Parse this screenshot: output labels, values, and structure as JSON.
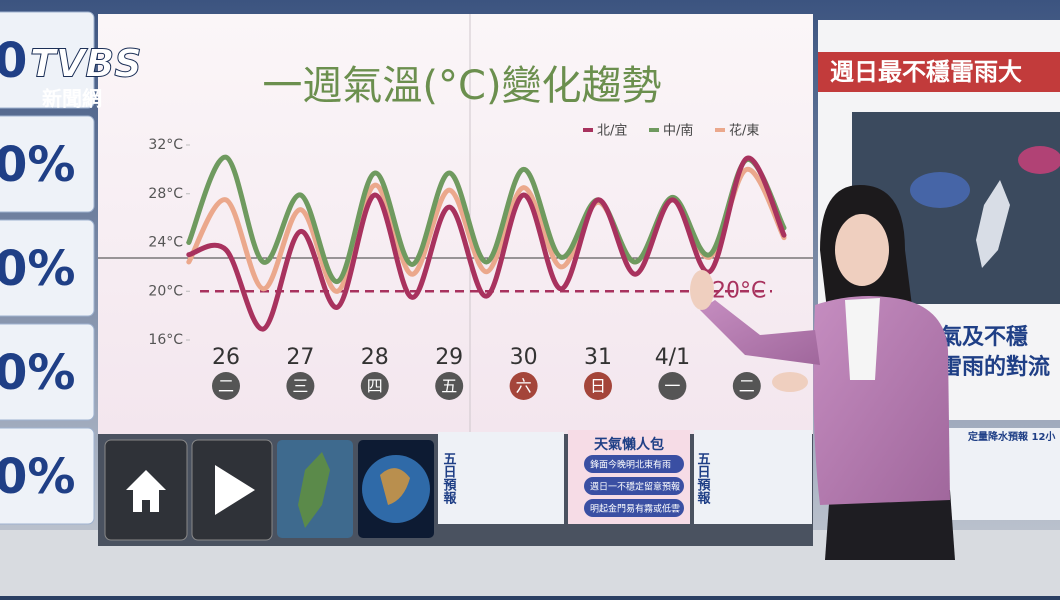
{
  "chart_data": {
    "type": "line",
    "title": "一週氣溫(°C)變化趨勢",
    "categories": [
      null,
      "26",
      null,
      "27",
      null,
      "28",
      null,
      "29",
      null,
      "30",
      null,
      "31",
      null,
      "4/1",
      null,
      null,
      null
    ],
    "weekdays": [
      "二",
      "三",
      "四",
      "五",
      "六",
      "日",
      "一",
      "二"
    ],
    "series": [
      {
        "name": "北/宜",
        "color": "#a8325e",
        "values": [
          23,
          23.4,
          16.9,
          24.9,
          18.7,
          27.9,
          19.5,
          26.9,
          19.6,
          27.9,
          20.2,
          27.5,
          21.4,
          27.5,
          21.6,
          30.9,
          24.6
        ]
      },
      {
        "name": "中/南",
        "color": "#6f9a5f",
        "values": [
          24,
          31,
          22.4,
          27.9,
          20.8,
          29.7,
          22.2,
          29.7,
          22.4,
          30,
          22.8,
          27.5,
          22.4,
          27.7,
          23,
          30.8,
          25.2
        ]
      },
      {
        "name": "花/東",
        "color": "#eba88c",
        "values": [
          22.4,
          27.5,
          20.2,
          26.7,
          20,
          28.7,
          21.4,
          28.3,
          21.6,
          28.5,
          22,
          27.3,
          22.4,
          27.5,
          22.8,
          30,
          24.4
        ]
      }
    ],
    "ylim": [
      16,
      32
    ],
    "yticks": [
      {
        "value": 16,
        "label": "16°C"
      },
      {
        "value": 20,
        "label": "20°C"
      },
      {
        "value": 24,
        "label": "24°C"
      },
      {
        "value": 28,
        "label": "28°C"
      },
      {
        "value": 32,
        "label": "32°C"
      }
    ],
    "reference_line": {
      "value": 20,
      "label": "20°C",
      "color": "#a8325e"
    },
    "legend": "top-right"
  },
  "logo": {
    "brand": "TVBS",
    "sub": "新聞網"
  },
  "left_cards": [
    "0",
    "0%",
    "0%",
    "0%",
    "0%"
  ],
  "right_panel": {
    "header": "週日最不穩雷雨大",
    "lines": [
      "氣及不穩",
      "雷雨的對流"
    ]
  },
  "thumbnails": {
    "five_day": "五日預報",
    "lazy_title": "天氣懶人包",
    "lazy_items": [
      "鋒面今晚明北東有雨",
      "週日一不穩定留意預報",
      "明起金門易有霧或低雲"
    ],
    "rain_title": "定量降水預報 12小"
  }
}
